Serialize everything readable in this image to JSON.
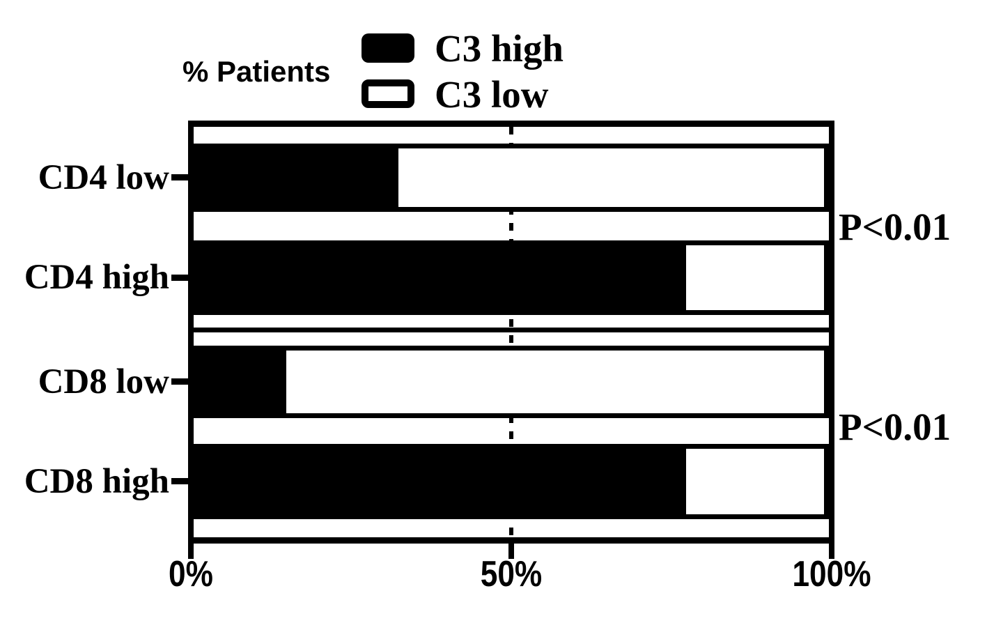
{
  "chart_data": {
    "type": "bar",
    "orientation": "horizontal",
    "stacked": true,
    "title": "% Patients",
    "categories": [
      "CD4 low",
      "CD4 high",
      "CD8 low",
      "CD8 high"
    ],
    "series": [
      {
        "name": "C3 high",
        "color": "#000000",
        "values": [
          32,
          78,
          14,
          78
        ]
      },
      {
        "name": "C3 low",
        "color": "#ffffff",
        "values": [
          68,
          22,
          86,
          22
        ]
      }
    ],
    "xlim": [
      0,
      100
    ],
    "x_ticks": [
      "0%",
      "50%",
      "100%"
    ],
    "x_tick_values": [
      0,
      50,
      100
    ],
    "reference_line_x": 50,
    "reference_line_style": "dashed",
    "legend_position": "top",
    "grid": false,
    "annotations": [
      {
        "text": "P<0.01",
        "applies_to": [
          "CD4 low",
          "CD4 high"
        ]
      },
      {
        "text": "P<0.01",
        "applies_to": [
          "CD8 low",
          "CD8 high"
        ]
      }
    ],
    "colors": {
      "foreground": "#000000",
      "background": "#ffffff"
    }
  }
}
